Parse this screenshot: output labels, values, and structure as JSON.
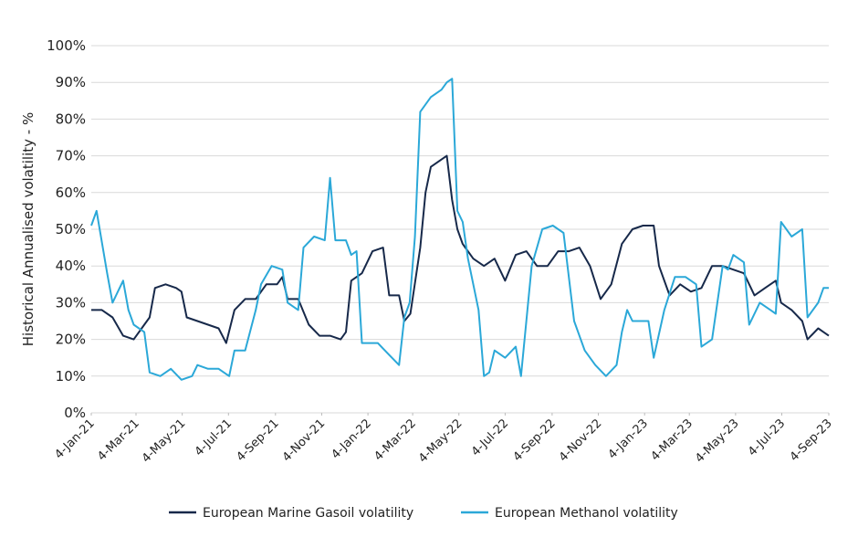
{
  "chart_data": {
    "type": "line",
    "y_label": "Historical Annualised volatility - %",
    "xlim": [
      "2021-01-04",
      "2023-09-04"
    ],
    "xticks": [
      {
        "value": "2021-01-04",
        "label": "4-Jan-21"
      },
      {
        "value": "2021-03-04",
        "label": "4-Mar-21"
      },
      {
        "value": "2021-05-04",
        "label": "4-May-21"
      },
      {
        "value": "2021-07-04",
        "label": "4-Jul-21"
      },
      {
        "value": "2021-09-04",
        "label": "4-Sep-21"
      },
      {
        "value": "2021-11-04",
        "label": "4-Nov-21"
      },
      {
        "value": "2022-01-04",
        "label": "4-Jan-22"
      },
      {
        "value": "2022-03-04",
        "label": "4-Mar-22"
      },
      {
        "value": "2022-05-04",
        "label": "4-May-22"
      },
      {
        "value": "2022-07-04",
        "label": "4-Jul-22"
      },
      {
        "value": "2022-09-04",
        "label": "4-Sep-22"
      },
      {
        "value": "2022-11-04",
        "label": "4-Nov-22"
      },
      {
        "value": "2023-01-04",
        "label": "4-Jan-23"
      },
      {
        "value": "2023-03-04",
        "label": "4-Mar-23"
      },
      {
        "value": "2023-05-04",
        "label": "4-May-23"
      },
      {
        "value": "2023-07-04",
        "label": "4-Jul-23"
      },
      {
        "value": "2023-09-04",
        "label": "4-Sep-23"
      }
    ],
    "ylim": [
      0,
      100
    ],
    "yticks": [
      {
        "value": 0,
        "label": "0%"
      },
      {
        "value": 10,
        "label": "10%"
      },
      {
        "value": 20,
        "label": "20%"
      },
      {
        "value": 30,
        "label": "30%"
      },
      {
        "value": 40,
        "label": "40%"
      },
      {
        "value": 50,
        "label": "50%"
      },
      {
        "value": 60,
        "label": "60%"
      },
      {
        "value": 70,
        "label": "70%"
      },
      {
        "value": 80,
        "label": "80%"
      },
      {
        "value": 90,
        "label": "90%"
      },
      {
        "value": 100,
        "label": "100%"
      }
    ],
    "grid": true,
    "legend": "bottom",
    "series": [
      {
        "name": "European Marine Gasoil volatility",
        "color": "#17294a",
        "x": [
          "2021-01-04",
          "2021-01-18",
          "2021-02-01",
          "2021-02-15",
          "2021-03-01",
          "2021-03-15",
          "2021-03-22",
          "2021-03-29",
          "2021-04-12",
          "2021-04-26",
          "2021-05-03",
          "2021-05-10",
          "2021-05-24",
          "2021-06-07",
          "2021-06-21",
          "2021-07-01",
          "2021-07-12",
          "2021-07-26",
          "2021-08-09",
          "2021-08-23",
          "2021-09-06",
          "2021-09-13",
          "2021-09-20",
          "2021-10-04",
          "2021-10-18",
          "2021-11-01",
          "2021-11-15",
          "2021-11-29",
          "2021-12-06",
          "2021-12-13",
          "2021-12-27",
          "2022-01-10",
          "2022-01-24",
          "2022-02-01",
          "2022-02-14",
          "2022-02-21",
          "2022-03-01",
          "2022-03-14",
          "2022-03-21",
          "2022-03-28",
          "2022-04-11",
          "2022-04-18",
          "2022-04-25",
          "2022-05-02",
          "2022-05-09",
          "2022-05-23",
          "2022-06-06",
          "2022-06-20",
          "2022-07-04",
          "2022-07-18",
          "2022-08-01",
          "2022-08-15",
          "2022-08-29",
          "2022-09-12",
          "2022-09-26",
          "2022-10-10",
          "2022-10-24",
          "2022-11-07",
          "2022-11-21",
          "2022-12-05",
          "2022-12-19",
          "2023-01-02",
          "2023-01-16",
          "2023-01-23",
          "2023-02-06",
          "2023-02-20",
          "2023-03-06",
          "2023-03-20",
          "2023-04-03",
          "2023-04-17",
          "2023-05-01",
          "2023-05-15",
          "2023-05-29",
          "2023-06-12",
          "2023-06-26",
          "2023-07-03",
          "2023-07-17",
          "2023-07-31",
          "2023-08-07",
          "2023-08-21",
          "2023-08-28",
          "2023-09-04"
        ],
        "values": [
          28,
          28,
          26,
          21,
          20,
          24,
          26,
          34,
          35,
          34,
          33,
          26,
          25,
          24,
          23,
          19,
          28,
          31,
          31,
          35,
          35,
          37,
          31,
          31,
          24,
          21,
          21,
          20,
          22,
          36,
          38,
          44,
          45,
          32,
          32,
          25,
          27,
          45,
          60,
          67,
          69,
          70,
          58,
          50,
          46,
          42,
          40,
          42,
          36,
          43,
          44,
          40,
          40,
          44,
          44,
          45,
          40,
          31,
          35,
          46,
          50,
          51,
          51,
          40,
          32,
          35,
          33,
          34,
          40,
          40,
          39,
          38,
          32,
          34,
          36,
          30,
          28,
          25,
          20,
          23,
          22,
          21
        ]
      },
      {
        "name": "European Methanol volatility",
        "color": "#2ba8d8",
        "x": [
          "2021-01-04",
          "2021-01-11",
          "2021-01-25",
          "2021-02-01",
          "2021-02-15",
          "2021-02-22",
          "2021-03-01",
          "2021-03-15",
          "2021-03-22",
          "2021-04-05",
          "2021-04-19",
          "2021-05-03",
          "2021-05-17",
          "2021-05-24",
          "2021-06-07",
          "2021-06-21",
          "2021-07-05",
          "2021-07-12",
          "2021-07-26",
          "2021-08-09",
          "2021-08-16",
          "2021-08-30",
          "2021-09-13",
          "2021-09-20",
          "2021-10-04",
          "2021-10-11",
          "2021-10-25",
          "2021-11-08",
          "2021-11-15",
          "2021-11-22",
          "2021-12-06",
          "2021-12-13",
          "2021-12-20",
          "2021-12-27",
          "2022-01-17",
          "2022-01-31",
          "2022-02-14",
          "2022-02-21",
          "2022-02-28",
          "2022-03-07",
          "2022-03-14",
          "2022-03-28",
          "2022-04-11",
          "2022-04-18",
          "2022-04-25",
          "2022-05-02",
          "2022-05-09",
          "2022-05-16",
          "2022-05-30",
          "2022-06-06",
          "2022-06-13",
          "2022-06-20",
          "2022-07-04",
          "2022-07-18",
          "2022-07-25",
          "2022-08-08",
          "2022-08-22",
          "2022-09-05",
          "2022-09-19",
          "2022-10-03",
          "2022-10-17",
          "2022-10-31",
          "2022-11-14",
          "2022-11-28",
          "2022-12-05",
          "2022-12-12",
          "2022-12-19",
          "2023-01-09",
          "2023-01-16",
          "2023-01-30",
          "2023-02-13",
          "2023-02-27",
          "2023-03-13",
          "2023-03-20",
          "2023-04-03",
          "2023-04-17",
          "2023-04-24",
          "2023-05-01",
          "2023-05-15",
          "2023-05-22",
          "2023-06-05",
          "2023-06-19",
          "2023-06-26",
          "2023-07-03",
          "2023-07-17",
          "2023-07-31",
          "2023-08-07",
          "2023-08-21",
          "2023-08-28",
          "2023-09-04"
        ],
        "values": [
          51,
          55,
          38,
          30,
          36,
          28,
          24,
          22,
          11,
          10,
          12,
          9,
          10,
          13,
          12,
          12,
          10,
          17,
          17,
          28,
          35,
          40,
          39,
          30,
          28,
          45,
          48,
          47,
          64,
          47,
          47,
          43,
          44,
          19,
          19,
          16,
          13,
          26,
          30,
          48,
          82,
          86,
          88,
          90,
          91,
          55,
          52,
          42,
          28,
          10,
          11,
          17,
          15,
          18,
          10,
          40,
          50,
          51,
          49,
          25,
          17,
          13,
          10,
          13,
          22,
          28,
          25,
          25,
          15,
          28,
          37,
          37,
          35,
          18,
          20,
          40,
          39,
          43,
          41,
          24,
          30,
          28,
          27,
          52,
          48,
          50,
          26,
          30,
          34,
          34
        ]
      }
    ]
  }
}
